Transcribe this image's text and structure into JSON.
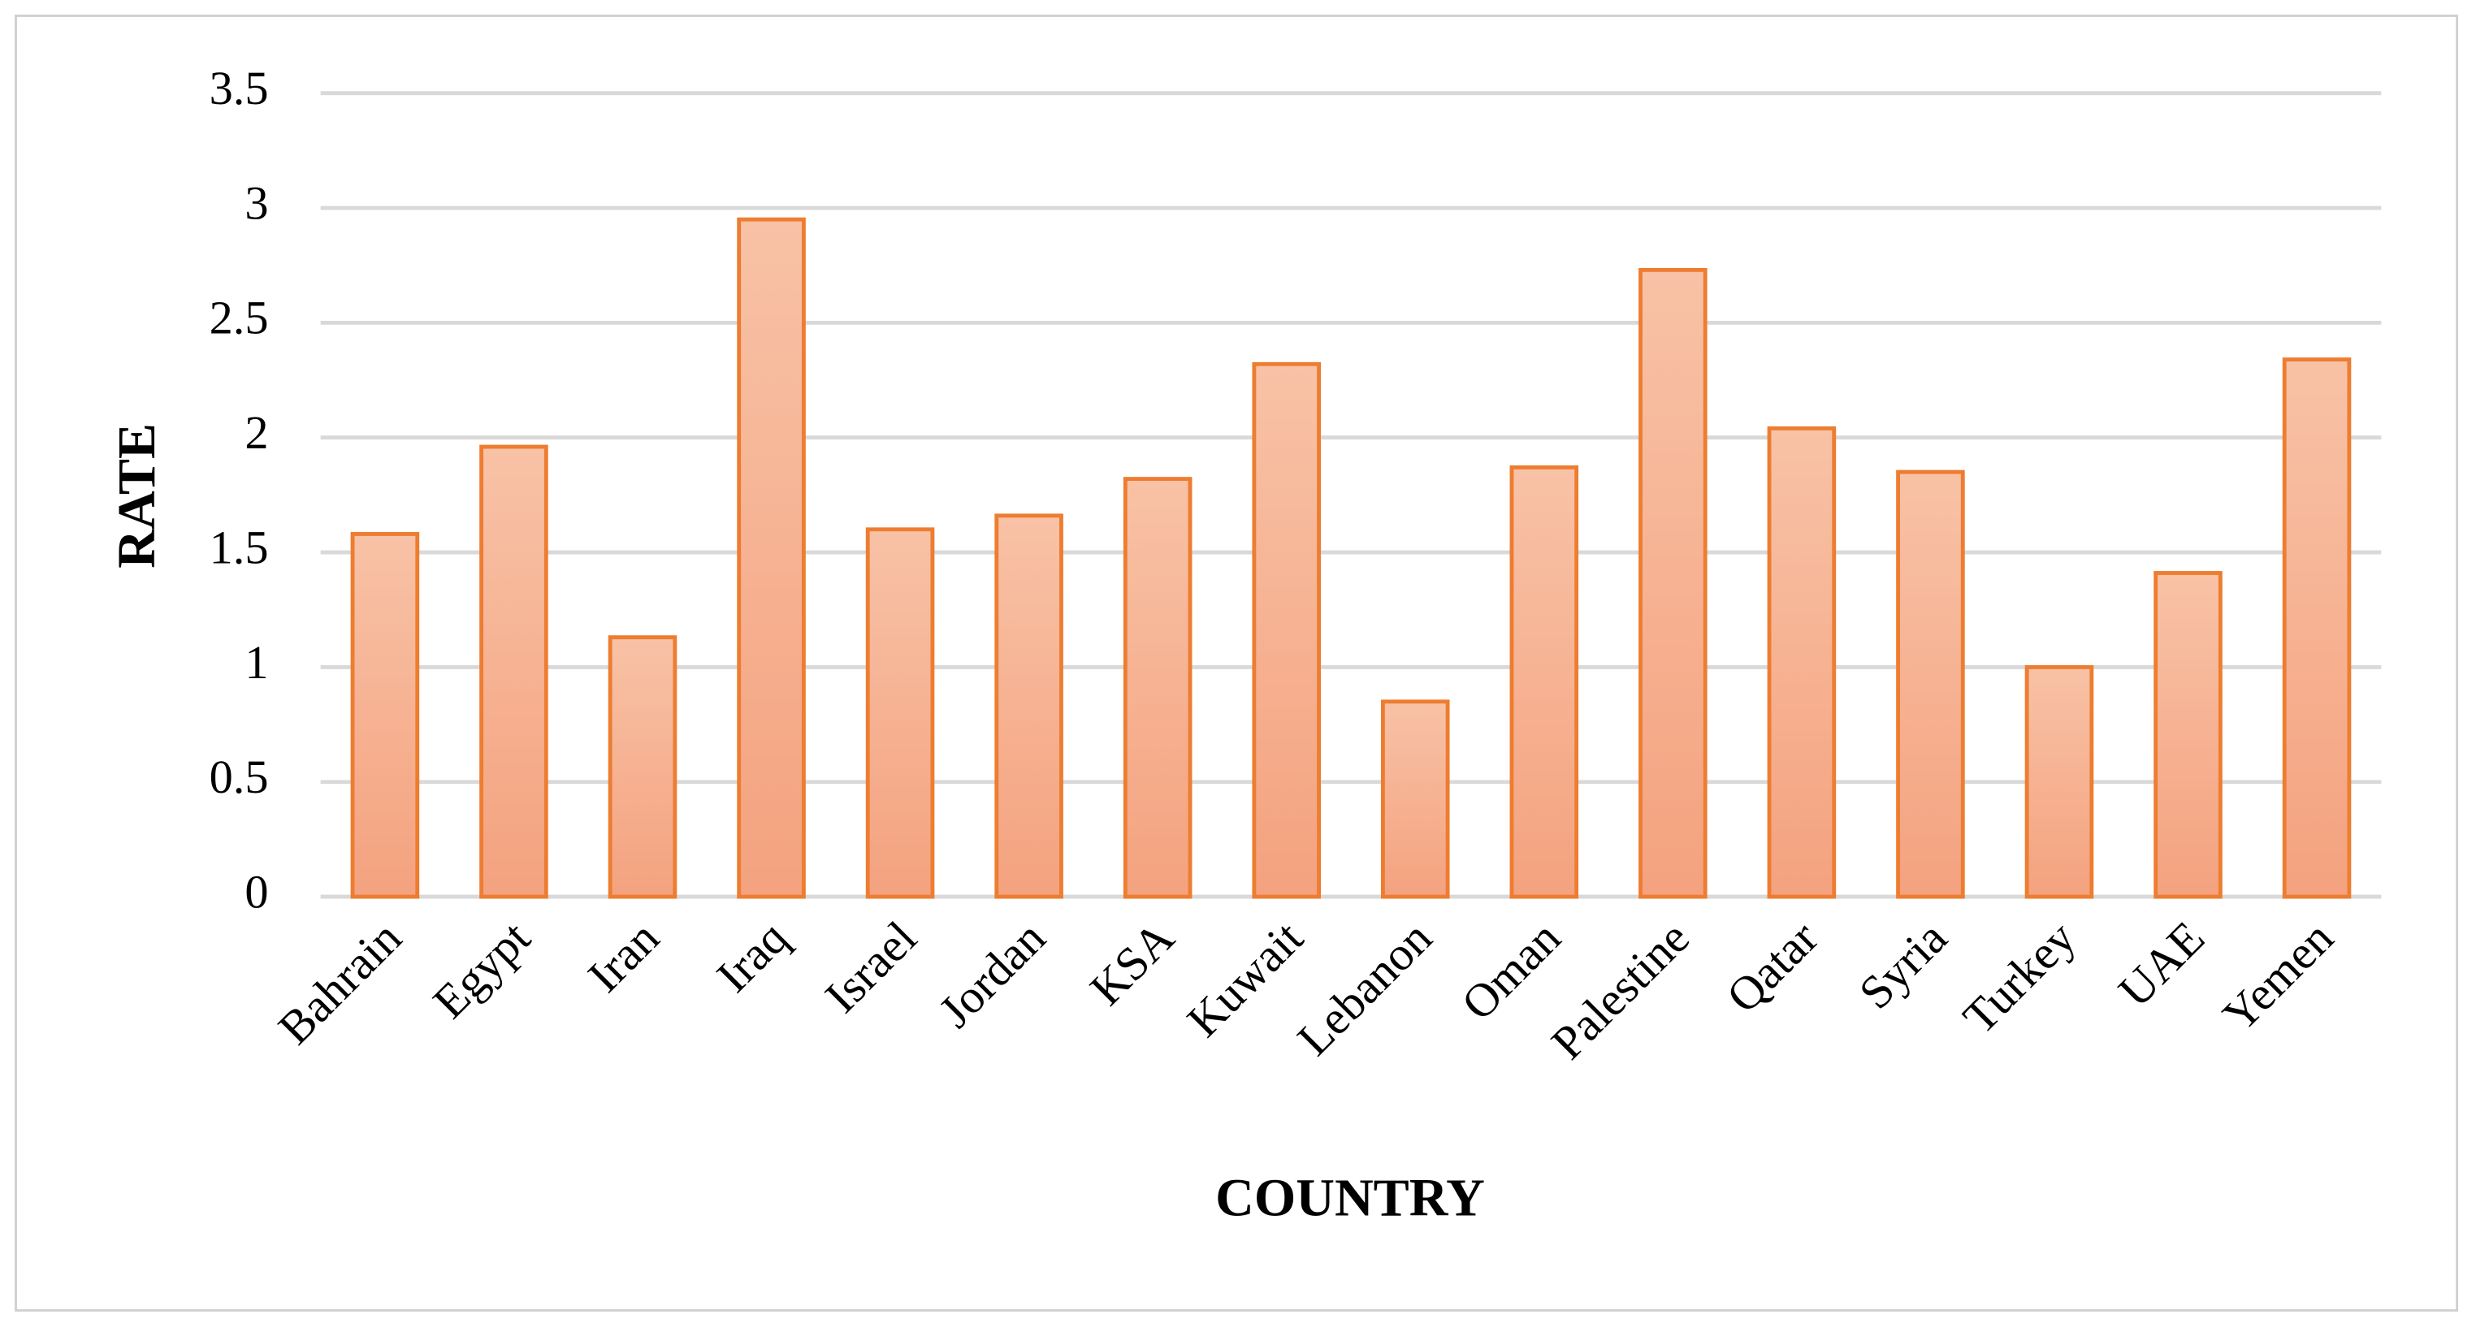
{
  "chart_data": {
    "type": "bar",
    "x_label": "COUNTRY",
    "y_label": "RATE",
    "categories": [
      "Bahrain",
      "Egypt",
      "Iran",
      "Iraq",
      "Israel",
      "Jordan",
      "KSA",
      "Kuwait",
      "Lebanon",
      "Oman",
      "Palestine",
      "Qatar",
      "Syria",
      "Turkey",
      "UAE",
      "Yemen"
    ],
    "values": [
      1.58,
      1.96,
      1.13,
      2.95,
      1.6,
      1.66,
      1.82,
      2.32,
      0.85,
      1.87,
      2.73,
      2.04,
      1.85,
      1.0,
      1.41,
      2.34
    ],
    "color": "#ed7d31",
    "ylim": [
      0,
      3.5
    ],
    "yticks": [
      0,
      0.5,
      1,
      1.5,
      2,
      2.5,
      3,
      3.5
    ],
    "grid": true
  }
}
